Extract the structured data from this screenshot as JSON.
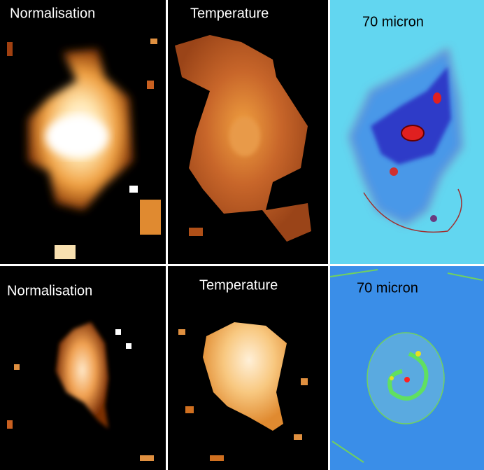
{
  "panels": {
    "rows": [
      [
        {
          "label": "Normalisation"
        },
        {
          "label": "Temperature"
        },
        {
          "label": "70 micron"
        }
      ],
      [
        {
          "label": "Normalisation"
        },
        {
          "label": "Temperature"
        },
        {
          "label": "70 micron"
        }
      ]
    ]
  }
}
